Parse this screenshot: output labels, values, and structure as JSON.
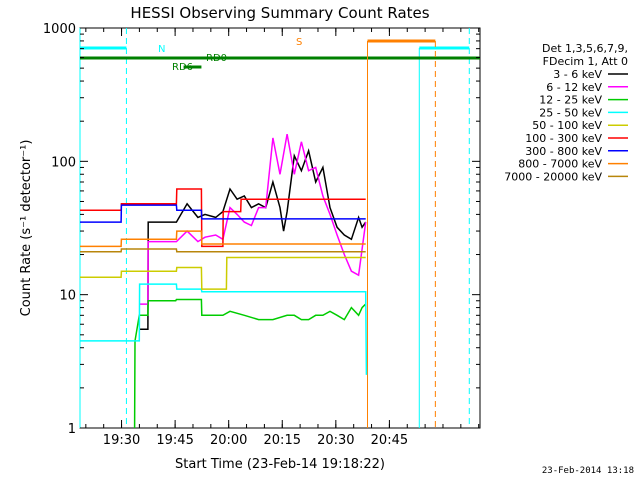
{
  "chart_data": {
    "type": "line",
    "title": "HESSI Observing Summary Count Rates",
    "xlabel": "Start Time (23-Feb-14 19:18:22)",
    "ylabel": "Count Rate (s⁻¹ detector⁻¹)",
    "x_tick_labels": [
      "19:30",
      "19:45",
      "20:00",
      "20:15",
      "20:30",
      "20:45"
    ],
    "y_tick_labels": [
      "1",
      "10",
      "100",
      "1000"
    ],
    "y_scale": "log",
    "ylim": [
      1,
      1000
    ],
    "xlim_minutes_after_19_18_22": [
      0,
      112
    ],
    "grid": false,
    "legend_position": "right",
    "legend_header": [
      "Det 1,3,5,6,7,9,",
      "FDecim 1, Att 0"
    ],
    "series": [
      {
        "name": "3 - 6 keV",
        "color": "#000000",
        "x": [
          16.6,
          19,
          19.1,
          27,
          30,
          33,
          35,
          38,
          40,
          42,
          44,
          46,
          48,
          50,
          52,
          54,
          56,
          57,
          58,
          60,
          62,
          64,
          66,
          68,
          70,
          72,
          74,
          76,
          78,
          79,
          80
        ],
        "y": [
          5.5,
          5.5,
          35,
          35,
          48,
          38,
          40,
          38,
          42,
          62,
          52,
          55,
          45,
          48,
          45,
          70,
          45,
          30,
          42,
          110,
          85,
          120,
          70,
          90,
          45,
          32,
          28,
          26,
          38,
          32,
          35
        ]
      },
      {
        "name": "6 - 12 keV",
        "color": "#ff00ff",
        "x": [
          16.6,
          19,
          19.1,
          27,
          30,
          33,
          35,
          38,
          40,
          42,
          44,
          46,
          48,
          50,
          52,
          54,
          56,
          58,
          60,
          62,
          64,
          66,
          68,
          70,
          72,
          74,
          76,
          78,
          79,
          80
        ],
        "y": [
          8.5,
          8.5,
          25,
          25,
          30,
          25,
          27,
          28,
          26,
          45,
          40,
          35,
          33,
          45,
          45,
          150,
          80,
          160,
          80,
          140,
          85,
          90,
          55,
          40,
          28,
          20,
          15,
          14,
          22,
          35
        ]
      },
      {
        "name": "12 - 25 keV",
        "color": "#00cc00",
        "x": [
          15.3,
          15.4,
          16.6,
          19,
          19.1,
          26.8,
          27,
          34,
          34.1,
          40,
          42,
          46,
          50,
          54,
          58,
          60,
          62,
          64,
          66,
          68,
          70,
          72,
          74,
          76,
          78,
          79,
          80
        ],
        "y": [
          1,
          4.5,
          7,
          7,
          9,
          9,
          9.2,
          9.2,
          7,
          7,
          7.5,
          7,
          6.5,
          6.5,
          7,
          7,
          6.5,
          6.5,
          7,
          7,
          7.5,
          7,
          6.5,
          8,
          7,
          8,
          8.5
        ]
      },
      {
        "name": "25 - 50 keV",
        "color": "#00ffff",
        "x": [
          0,
          16.6,
          16.7,
          19,
          19.1,
          27,
          27.1,
          34,
          34.1,
          50,
          80,
          80.2
        ],
        "y": [
          4.5,
          4.5,
          12,
          12,
          12,
          12,
          11,
          11,
          10.5,
          10.5,
          10.5,
          2.5
        ]
      },
      {
        "name": "50 - 100 keV",
        "color": "#cccc00",
        "x": [
          0,
          11.5,
          11.6,
          27,
          27.1,
          34,
          34.1,
          41,
          41.1,
          80
        ],
        "y": [
          13.5,
          13.5,
          15,
          15,
          16,
          16,
          11,
          11,
          19,
          19
        ]
      },
      {
        "name": "100 - 300 keV",
        "color": "#ff0000",
        "x": [
          0,
          11.5,
          11.6,
          27,
          27.1,
          34,
          34.1,
          40,
          40.1,
          45,
          45.1,
          80
        ],
        "y": [
          43,
          43,
          48,
          48,
          62,
          62,
          23,
          23,
          42,
          42,
          52,
          52
        ]
      },
      {
        "name": "300 - 800 keV",
        "color": "#0000ff",
        "x": [
          0,
          11.5,
          11.6,
          27,
          27.1,
          34,
          34.1,
          80
        ],
        "y": [
          35,
          35,
          47,
          47,
          43,
          43,
          37,
          37
        ]
      },
      {
        "name": "800 - 7000 keV",
        "color": "#ff8000",
        "x": [
          0,
          11.5,
          11.6,
          27,
          27.1,
          34,
          34.1,
          80
        ],
        "y": [
          23,
          23,
          26,
          26,
          30,
          30,
          24,
          24
        ]
      },
      {
        "name": "7000 - 20000 keV",
        "color": "#b8860b",
        "x": [
          0,
          11.5,
          11.6,
          27,
          27.1,
          80
        ],
        "y": [
          21,
          21,
          22,
          22,
          21,
          21
        ]
      }
    ],
    "annotations": [
      {
        "text": "N",
        "color": "#00ffff"
      },
      {
        "text": "RD0",
        "color": "#008000"
      },
      {
        "text": "RD6",
        "color": "#008000"
      },
      {
        "text": "S",
        "color": "#ff8000"
      }
    ],
    "flag_bars": {
      "night_solid": [
        [
          0,
          13
        ]
      ],
      "night_dashed_edges": [
        13
      ],
      "night2_solid": [
        [
          95,
          109
        ]
      ],
      "night2_dashed_edges": [
        109
      ],
      "rd0": [
        [
          0,
          112
        ]
      ],
      "rd6": [
        [
          29,
          34
        ]
      ],
      "saa": [
        [
          80.5,
          99.5
        ]
      ],
      "saa_dashed_edges": [
        99.5
      ]
    },
    "footer_timestamp": "23-Feb-2014 13:18"
  }
}
